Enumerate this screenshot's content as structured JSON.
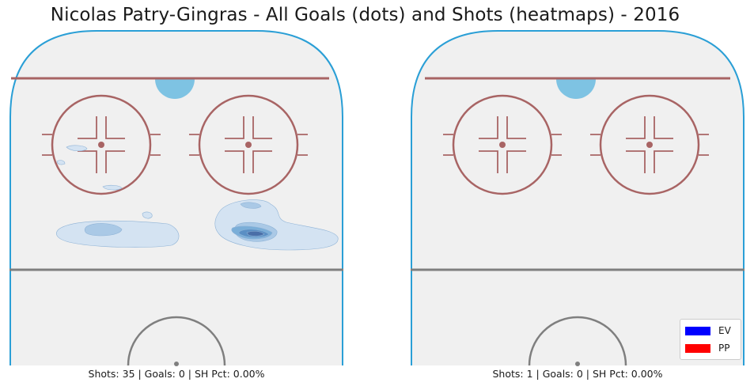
{
  "title": "Nicolas Patry-Gingras - All Goals (dots) and Shots (heatmaps) - 2016",
  "colors": {
    "ice": "#f0f0f0",
    "boards": "#2a9fd6",
    "red_line": "#a86464",
    "center_line": "#7f7f7f",
    "crease": "#7ec3e3",
    "heat_levels": [
      "#d4e3f2",
      "#aac9e6",
      "#7aaed8",
      "#5a8fc4",
      "#4a6fa8"
    ],
    "ev": "#0000ff",
    "pp": "#ff0000"
  },
  "chart_data": [
    {
      "type": "heatmap",
      "panel": "left",
      "caption": "Shots: 35 | Goals: 0 | SH Pct: 0.00%",
      "goals": []
    },
    {
      "type": "heatmap",
      "panel": "right",
      "caption": "Shots: 1 | Goals: 0 | SH Pct: 0.00%",
      "goals": []
    }
  ],
  "legend": {
    "placement": "bottom-right",
    "items": [
      {
        "label": "EV",
        "color": "#0000ff"
      },
      {
        "label": "PP",
        "color": "#ff0000"
      }
    ]
  }
}
